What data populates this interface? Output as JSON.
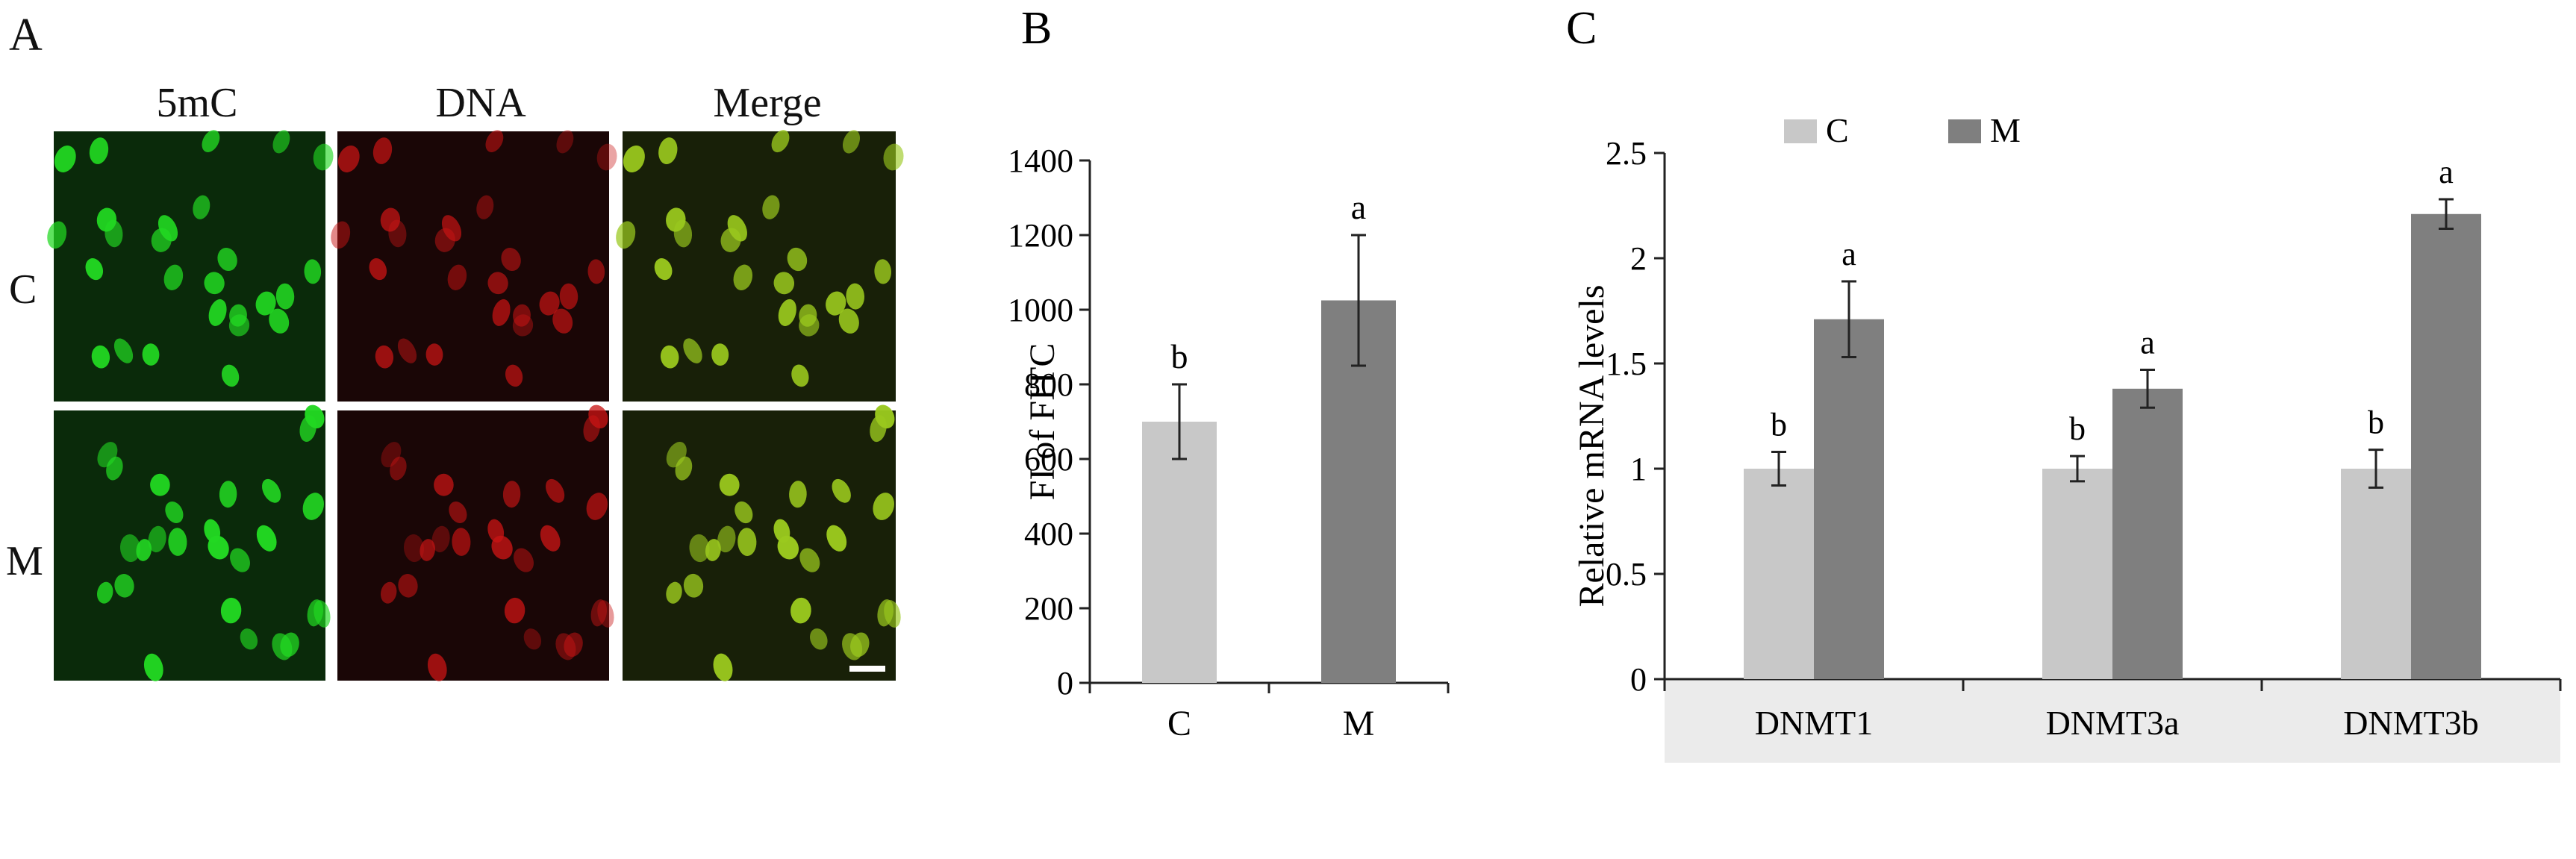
{
  "panel_a": {
    "letter": "A",
    "columns": [
      "5mC",
      "DNA",
      "Merge"
    ],
    "rows": [
      "C",
      "M"
    ]
  },
  "panel_b": {
    "letter": "B"
  },
  "panel_c": {
    "letter": "C"
  },
  "colors": {
    "control": "#c8c8c8",
    "treated": "#7f7f7f",
    "stain_5mc": "#22d822",
    "stain_dna": "#c81414",
    "merge": "#9ac81e"
  },
  "chart_data": [
    {
      "panel": "B",
      "type": "bar",
      "categories": [
        "C",
        "M"
      ],
      "values": [
        700,
        1025
      ],
      "errors": [
        100,
        175
      ],
      "significance": [
        "b",
        "a"
      ],
      "ylabel": "FI of FITC",
      "xlabel": "",
      "ylim": [
        0,
        1400
      ],
      "yticks": [
        0,
        200,
        400,
        600,
        800,
        1000,
        1200,
        1400
      ],
      "grid": false
    },
    {
      "panel": "C",
      "type": "bar",
      "categories": [
        "DNMT1",
        "DNMT3a",
        "DNMT3b"
      ],
      "series": [
        {
          "name": "C",
          "values": [
            1.0,
            1.0,
            1.0
          ],
          "errors": [
            0.08,
            0.06,
            0.09
          ],
          "significance": [
            "b",
            "b",
            "b"
          ]
        },
        {
          "name": "M",
          "values": [
            1.71,
            1.38,
            2.21
          ],
          "errors": [
            0.18,
            0.09,
            0.07
          ],
          "significance": [
            "a",
            "a",
            "a"
          ]
        }
      ],
      "ylabel": "Relative mRNA levels",
      "xlabel": "",
      "ylim": [
        0,
        2.5
      ],
      "yticks": [
        "0",
        "0.5",
        "1",
        "1.5",
        "2",
        "2.5"
      ],
      "legend_position": "top-center",
      "grid": false
    }
  ]
}
